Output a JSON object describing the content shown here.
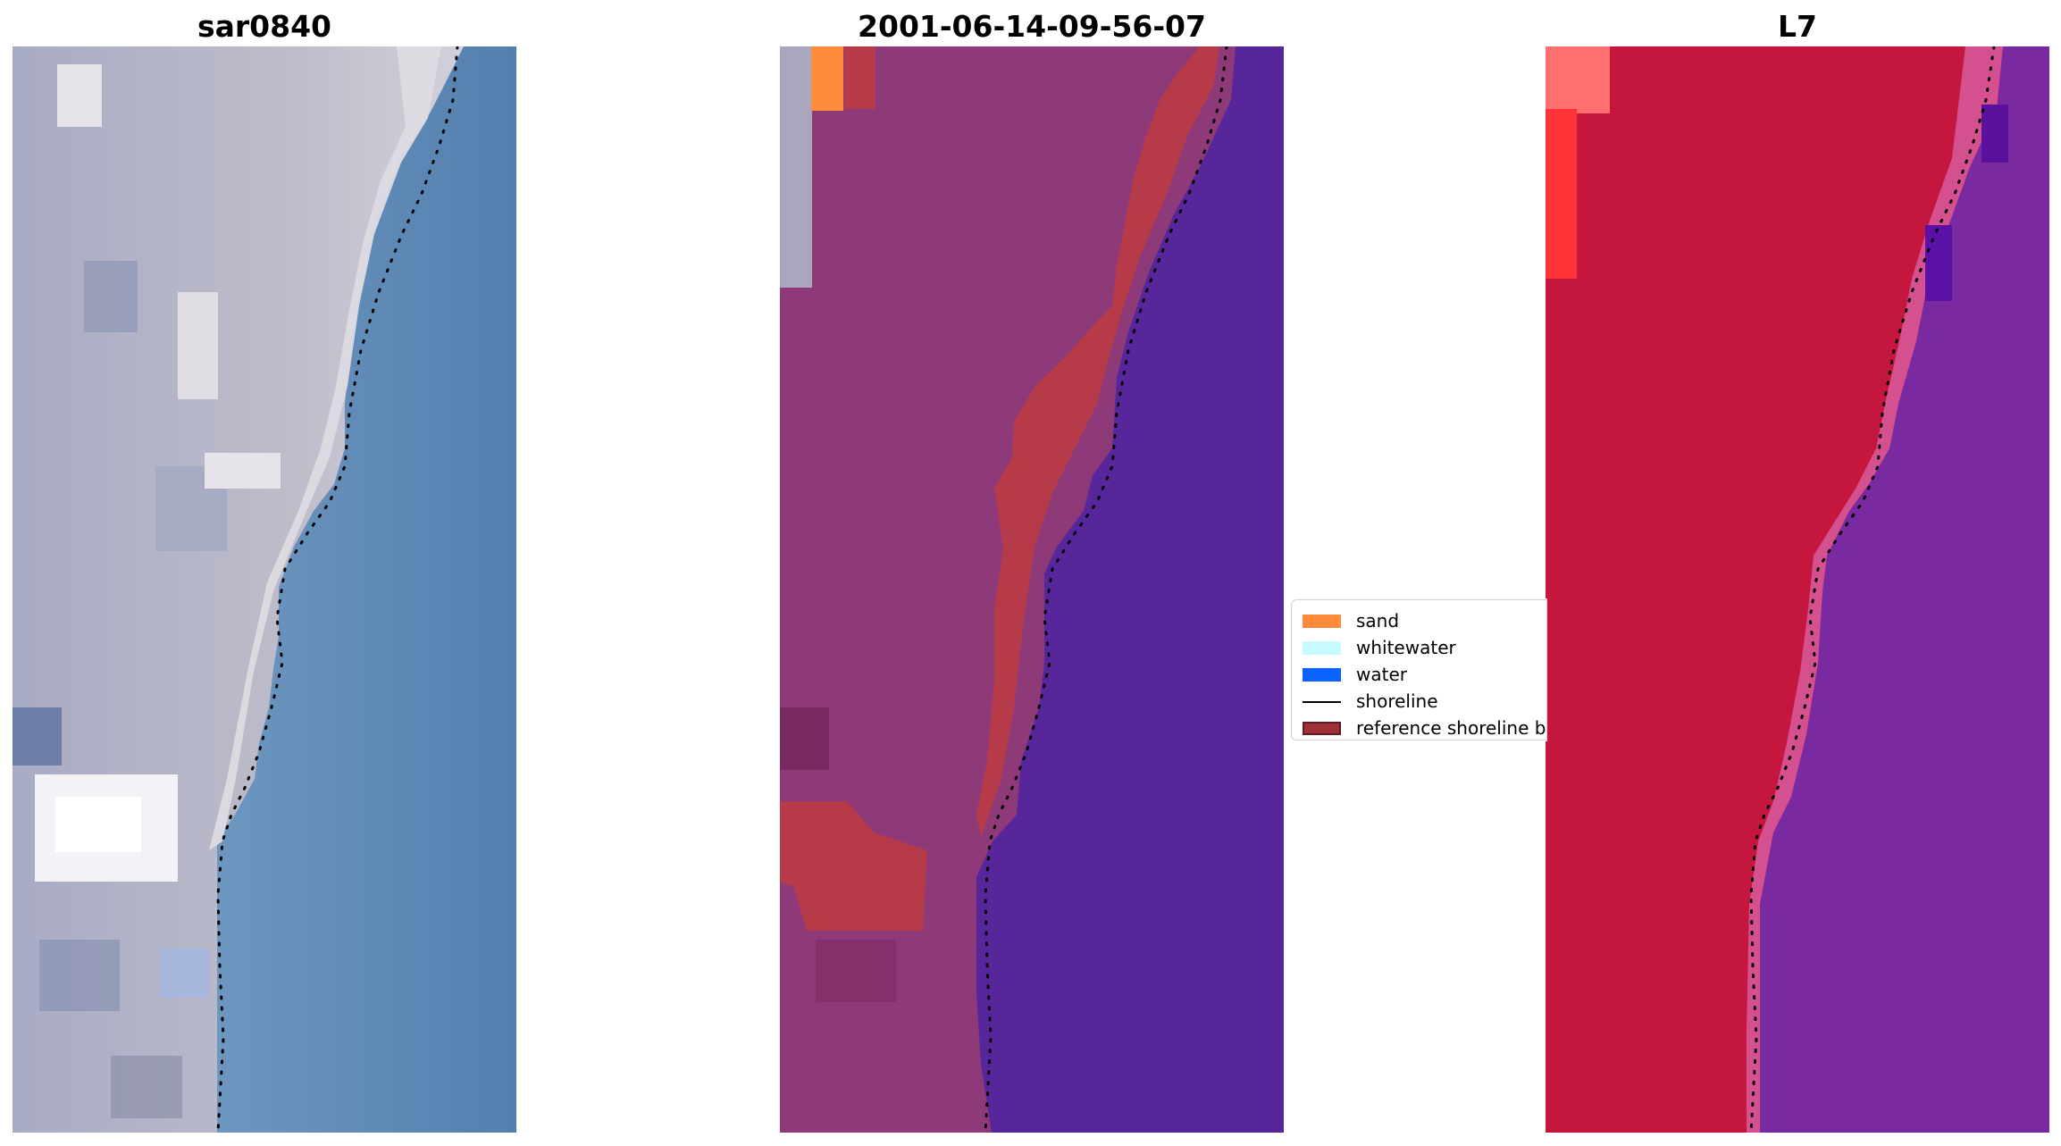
{
  "panels": [
    {
      "title": "sar0840"
    },
    {
      "title": "2001-06-14-09-56-07"
    },
    {
      "title": "L7"
    }
  ],
  "legend": {
    "items": [
      {
        "label": "sand",
        "color": "#ff8c3a",
        "kind": "patch"
      },
      {
        "label": "whitewater",
        "color": "#c8fbff",
        "kind": "patch"
      },
      {
        "label": "water",
        "color": "#0a63ff",
        "kind": "patch"
      },
      {
        "label": "shoreline",
        "color": "#000000",
        "kind": "line"
      },
      {
        "label": "reference shoreline b",
        "color": "#9e3037",
        "edge": "#5c1c20",
        "kind": "patch"
      }
    ]
  },
  "colors": {
    "rgb_land": "#b8b7c8",
    "rgb_water": "#5e8ab6",
    "class_land": "#8f3a78",
    "class_water": "#57269b",
    "class_buffer": "#b73a48",
    "false_color_land": "#c5163e",
    "false_color_water": "#7a2aa0"
  }
}
